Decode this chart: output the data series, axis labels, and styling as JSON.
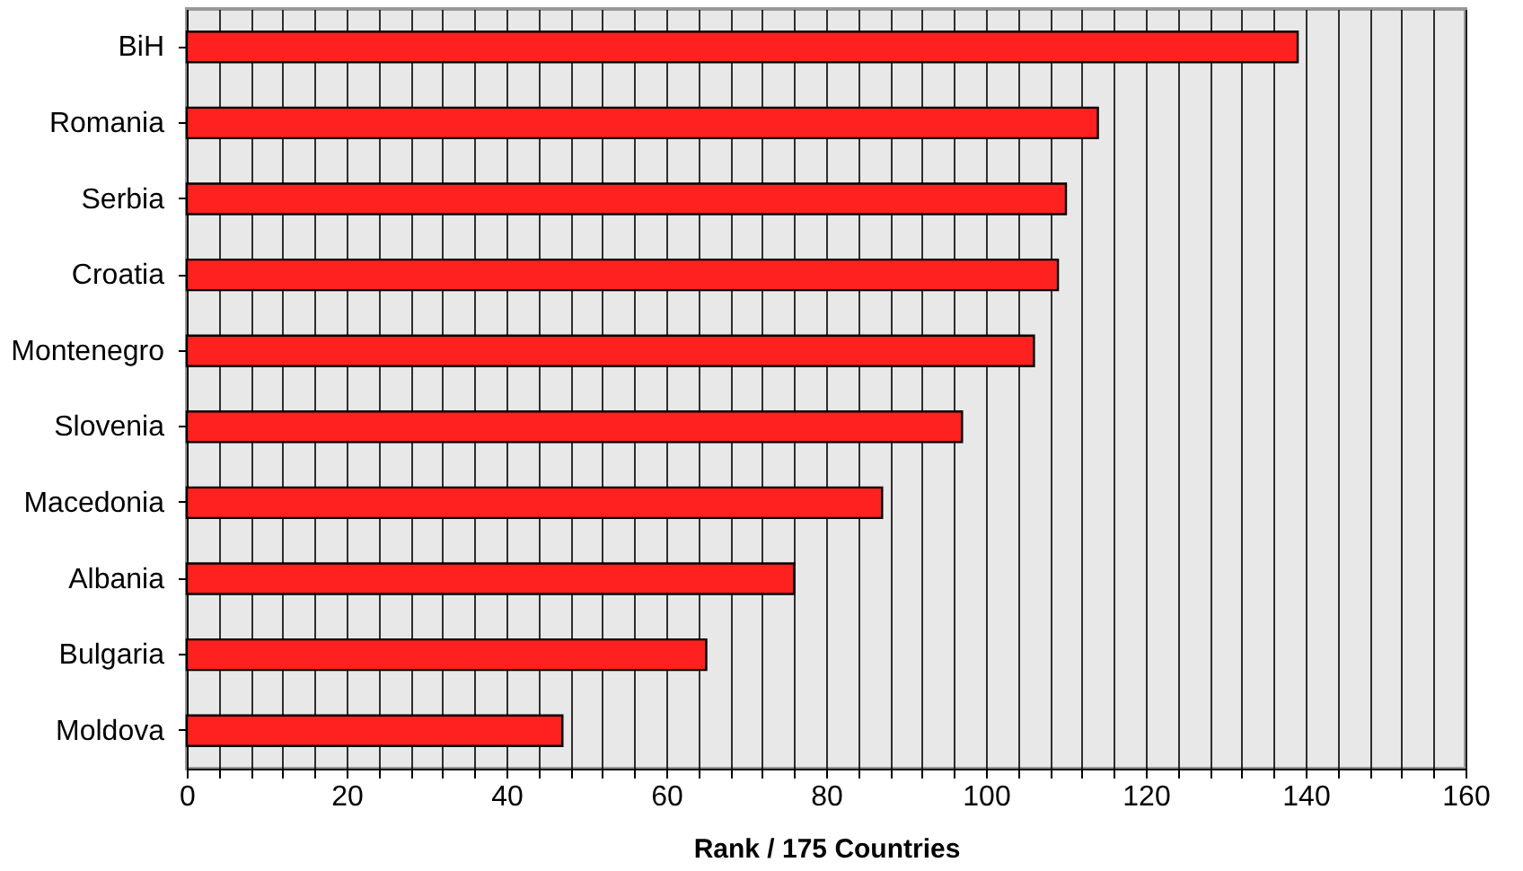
{
  "chart_data": {
    "type": "bar",
    "orientation": "horizontal",
    "xlabel": "Rank / 175 Countries",
    "categories": [
      "BiH",
      "Romania",
      "Serbia",
      "Croatia",
      "Montenegro",
      "Slovenia",
      "Macedonia",
      "Albania",
      "Bulgaria",
      "Moldova"
    ],
    "values": [
      139,
      114,
      110,
      109,
      106,
      97,
      87,
      76,
      65,
      47
    ],
    "color": "#ff2020",
    "xlim": [
      0,
      160
    ],
    "xticks": [
      0,
      {
        "value": 4,
        "label": null
      },
      {
        "value": 8,
        "label": null
      },
      {
        "value": 12,
        "label": null
      },
      {
        "value": 16,
        "label": null
      },
      20,
      {
        "value": 24,
        "label": null
      },
      {
        "value": 28,
        "label": null
      },
      {
        "value": 32,
        "label": null
      },
      {
        "value": 36,
        "label": null
      },
      40,
      {
        "value": 44,
        "label": null
      },
      {
        "value": 48,
        "label": null
      },
      {
        "value": 52,
        "label": null
      },
      {
        "value": 56,
        "label": null
      },
      60,
      {
        "value": 64,
        "label": null
      },
      {
        "value": 68,
        "label": null
      },
      {
        "value": 72,
        "label": null
      },
      {
        "value": 76,
        "label": null
      },
      80,
      {
        "value": 84,
        "label": null
      },
      {
        "value": 88,
        "label": null
      },
      {
        "value": 92,
        "label": null
      },
      {
        "value": 96,
        "label": null
      },
      100,
      {
        "value": 104,
        "label": null
      },
      {
        "value": 108,
        "label": null
      },
      {
        "value": 112,
        "label": null
      },
      {
        "value": 116,
        "label": null
      },
      120,
      {
        "value": 124,
        "label": null
      },
      {
        "value": 128,
        "label": null
      },
      {
        "value": 132,
        "label": null
      },
      {
        "value": 136,
        "label": null
      },
      140,
      {
        "value": 144,
        "label": null
      },
      {
        "value": 148,
        "label": null
      },
      {
        "value": 152,
        "label": null
      },
      {
        "value": 156,
        "label": null
      },
      160
    ],
    "grid": "x"
  }
}
